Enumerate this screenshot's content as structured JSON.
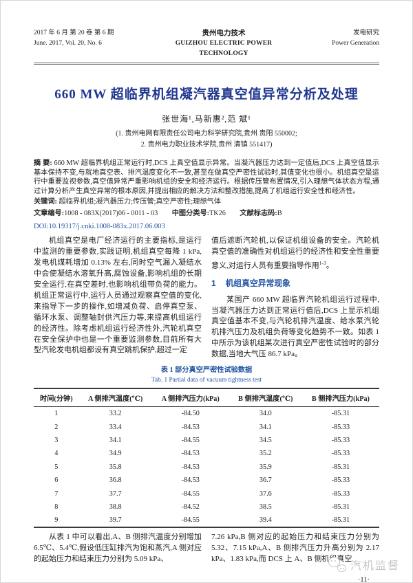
{
  "header": {
    "issue_cn": "2017 年 6 月 第 20 卷 第 6 期",
    "issue_en": "June. 2017, Vol. 20, No. 6",
    "journal_cn": "贵州电力技术",
    "journal_en": "GUIZHOU ELECTRIC POWER TECHNOLOGY",
    "column_cn": "发电研究",
    "column_en": "Power Generation"
  },
  "title": "660 MW 超临界机组凝汽器真空值异常分析及处理",
  "authors": "张世海¹,马新惠²,范  斌¹",
  "affiliation_line1": "(1. 贵州电网有限责任公司电力科学研究院,贵州 贵阳  550002;",
  "affiliation_line2": "2. 贵州电力职业技术学院,贵州 清镇  551417)",
  "abstract": {
    "label": "摘  要:",
    "text": "660 MW 超临界机组正常运行时,DCS 上真空值显示异常。当凝汽器压力达到一定值后,DCS 上真空值显示基本保持不变,与就地真空表、排汽温度变化不一致,甚至在做真空严密性试验时,其值变化也很小。机组真空是运行中重要监视参数,真空值异常严重影响机组的安全和经济运行。根据传压管布置情况,引入理想气体状态方程,通过计算分析产生真空异常的根本原因,并提出相应的解决方法和整改措施,提高了机组运行安全性和经济性。"
  },
  "keywords": {
    "label": "关键词:",
    "text": "超临界机组;凝汽器压力;传压管;真空严密性;理想气体"
  },
  "meta": {
    "number_label": "文章编号:",
    "number_value": "1008 - 083X(2017)06 - 0011 - 03",
    "clc_label": "中图分类号:",
    "clc_value": "TK26",
    "code_label": "文献标志码:",
    "code_value": "B",
    "doi": "DOI:10.19317/j.cnki.1008-083x.2017.06.003"
  },
  "body": {
    "left_col_p1": "机组真空是电厂经济运行的主要指标,是运行中监测的重要参数,实践证明,机组真空每降 1 kPa,发电机煤耗增加 0.13% 左右,同时空气漏入凝结水中会使凝结水溶氧升高,腐蚀设备,影响机组的长期安全运行,在真空差时,也影响机组带负荷的能力。机组正常运行中,运行人员通过观察真空值的变化,来指导下一步的操作,如增减负荷、启停真空泵、循环水泵、调整轴封供汽压力等,来提高机组运行的经济性。除考虑机组运行经济性外,汽轮机真空在安全保护中也是一个重要监测参数,目前所有大型汽轮发电机组都设有真空跳机保护,超过一定",
    "right_col_p1": "值后遮断汽轮机,以保证机组设备的安全。汽轮机真空值的准确性对机组运行的经济性和安全性重要意义,对运行人员有重要指导作用",
    "right_col_p1_cite": "1-3",
    "right_col_p1_end": "。",
    "section1_num": "1",
    "section1_title": "机组真空异常现象",
    "section1_p1": "某国产 660 MW 超临界汽轮机组运行过程中,当凝汽器压力达到正常运行值后,DCS 上显示机组真空值基本不变,与汽轮机排汽温度、给水泵汽轮机排汽压力及机组负荷等变化趋势不一致。如表 1 中所示为该机组某次进行真空严密性试验时的部分数据,当地大气压 86.7 kPa。"
  },
  "table": {
    "caption_cn": "表 1  部分真空严密性试验数据",
    "caption_en": "Tab. 1  Partial data of vacuum tightness test",
    "headers": [
      "时间(分钟)",
      "A 侧排汽温度(℃)",
      "A 侧排汽压力(kPa)",
      "B 侧排汽温度(℃)",
      "B 侧排汽压力(kPa)"
    ],
    "rows": [
      [
        "1",
        "33.2",
        "-84.50",
        "34.0",
        "-85.31"
      ],
      [
        "2",
        "33.4",
        "-84.53",
        "34.1",
        "-85.33"
      ],
      [
        "3",
        "34.1",
        "-84.55",
        "34.5",
        "-85.33"
      ],
      [
        "4",
        "34.9",
        "-84.53",
        "35.2",
        "-85.33"
      ],
      [
        "5",
        "35.8",
        "-84.53",
        "35.9",
        "-85.31"
      ],
      [
        "6",
        "36.8",
        "-84.53",
        "36.7",
        "-85.33"
      ],
      [
        "7",
        "37.7",
        "-84.55",
        "37.6",
        "-85.33"
      ],
      [
        "8",
        "38.8",
        "-84.52",
        "38.5",
        "-85.31"
      ],
      [
        "9",
        "39.7",
        "-84.55",
        "39.4",
        "-85.31"
      ]
    ]
  },
  "bottom": {
    "left_p": "从表 1 中可以看出,A、B 侧排汽温度分别增加 6.5℃、5.4℃,假设低压缸排汽为饱和蒸汽,A 侧对应的起始压力和结束压力分别为 5.09 kPa、",
    "right_p": "7.26 kPa,B 侧对应的起始压力和结束压力分别为 5.32、7.15 kPa,A、B 侧排汽压力升高分别为 2.17 kPa、1.83 kPa,而 DCS 上 A、B 侧机组真空",
    "page_number": "·11·"
  },
  "watermark": {
    "text": "汽机监督"
  },
  "colors": {
    "title_blue": "#20378f",
    "heading_blue": "#2254a3",
    "rule_gray": "#6a6a6a",
    "watermark_gray": "#c6c6c6"
  }
}
